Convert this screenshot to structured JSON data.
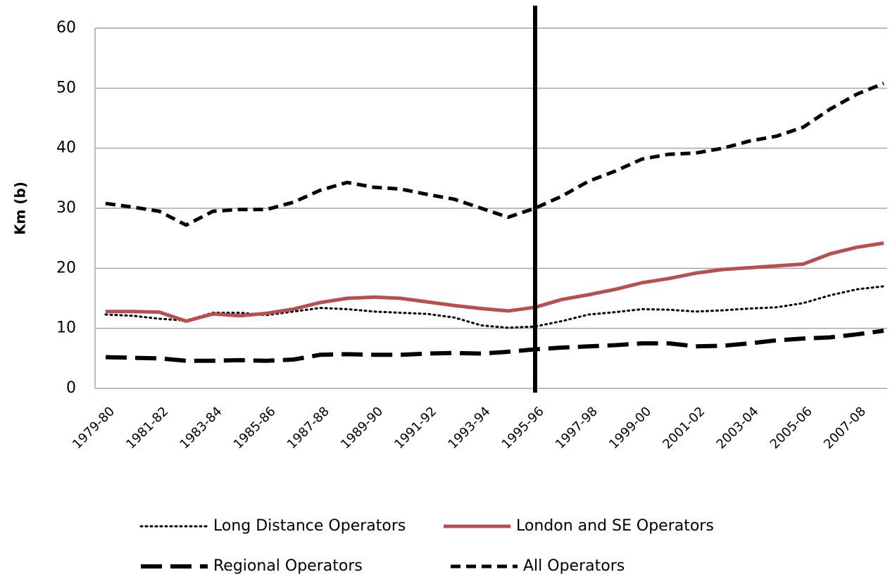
{
  "chart_data": {
    "type": "line",
    "y_label": "Km (b)",
    "categories": [
      "1979-80",
      null,
      "1981-82",
      null,
      "1983-84",
      null,
      "1985-86",
      null,
      "1987-88",
      null,
      "1989-90",
      null,
      "1991-92",
      null,
      "1993-94",
      null,
      "1995-96",
      null,
      "1997-98",
      null,
      "1999-00",
      null,
      "2001-02",
      null,
      "2003-04",
      null,
      "2005-06",
      null,
      "2007-08",
      null
    ],
    "series": [
      {
        "name": "Long Distance Operators",
        "color": "#000000",
        "style": "dotted",
        "values": [
          12.3,
          12.1,
          11.6,
          11.3,
          12.6,
          12.6,
          12.2,
          12.8,
          13.4,
          13.2,
          12.8,
          12.6,
          12.4,
          11.8,
          10.5,
          10.1,
          10.3,
          11.2,
          12.3,
          12.7,
          13.2,
          13.1,
          12.8,
          13.0,
          13.3,
          13.5,
          14.2,
          15.5,
          16.5,
          17.0
        ]
      },
      {
        "name": "London and SE Operators",
        "color": "#b5504f",
        "style": "solid",
        "values": [
          12.8,
          12.8,
          12.7,
          11.2,
          12.4,
          12.1,
          12.5,
          13.2,
          14.3,
          15.0,
          15.2,
          15.0,
          14.4,
          13.8,
          13.3,
          12.9,
          13.5,
          14.8,
          15.6,
          16.5,
          17.6,
          18.3,
          19.2,
          19.8,
          20.1,
          20.4,
          20.7,
          22.4,
          23.5,
          24.2
        ]
      },
      {
        "name": "Regional Operators",
        "color": "#000000",
        "style": "long-dash",
        "values": [
          5.2,
          5.1,
          5.0,
          4.6,
          4.6,
          4.7,
          4.6,
          4.8,
          5.6,
          5.7,
          5.6,
          5.6,
          5.8,
          5.9,
          5.8,
          6.1,
          6.5,
          6.8,
          7.0,
          7.2,
          7.5,
          7.5,
          7.0,
          7.1,
          7.5,
          8.0,
          8.3,
          8.5,
          9.0,
          9.6
        ]
      },
      {
        "name": "All Operators",
        "color": "#000000",
        "style": "dashed",
        "values": [
          30.8,
          30.2,
          29.5,
          27.2,
          29.5,
          29.8,
          29.8,
          31.0,
          33.0,
          34.3,
          33.5,
          33.2,
          32.3,
          31.5,
          30.0,
          28.5,
          30.0,
          32.0,
          34.5,
          36.2,
          38.2,
          39.0,
          39.2,
          40.0,
          41.2,
          42.0,
          43.5,
          46.5,
          49.0,
          50.8
        ]
      }
    ],
    "ylim": [
      0,
      60
    ],
    "yticks": [
      0,
      10,
      20,
      30,
      40,
      50,
      60
    ],
    "grid": true
  }
}
